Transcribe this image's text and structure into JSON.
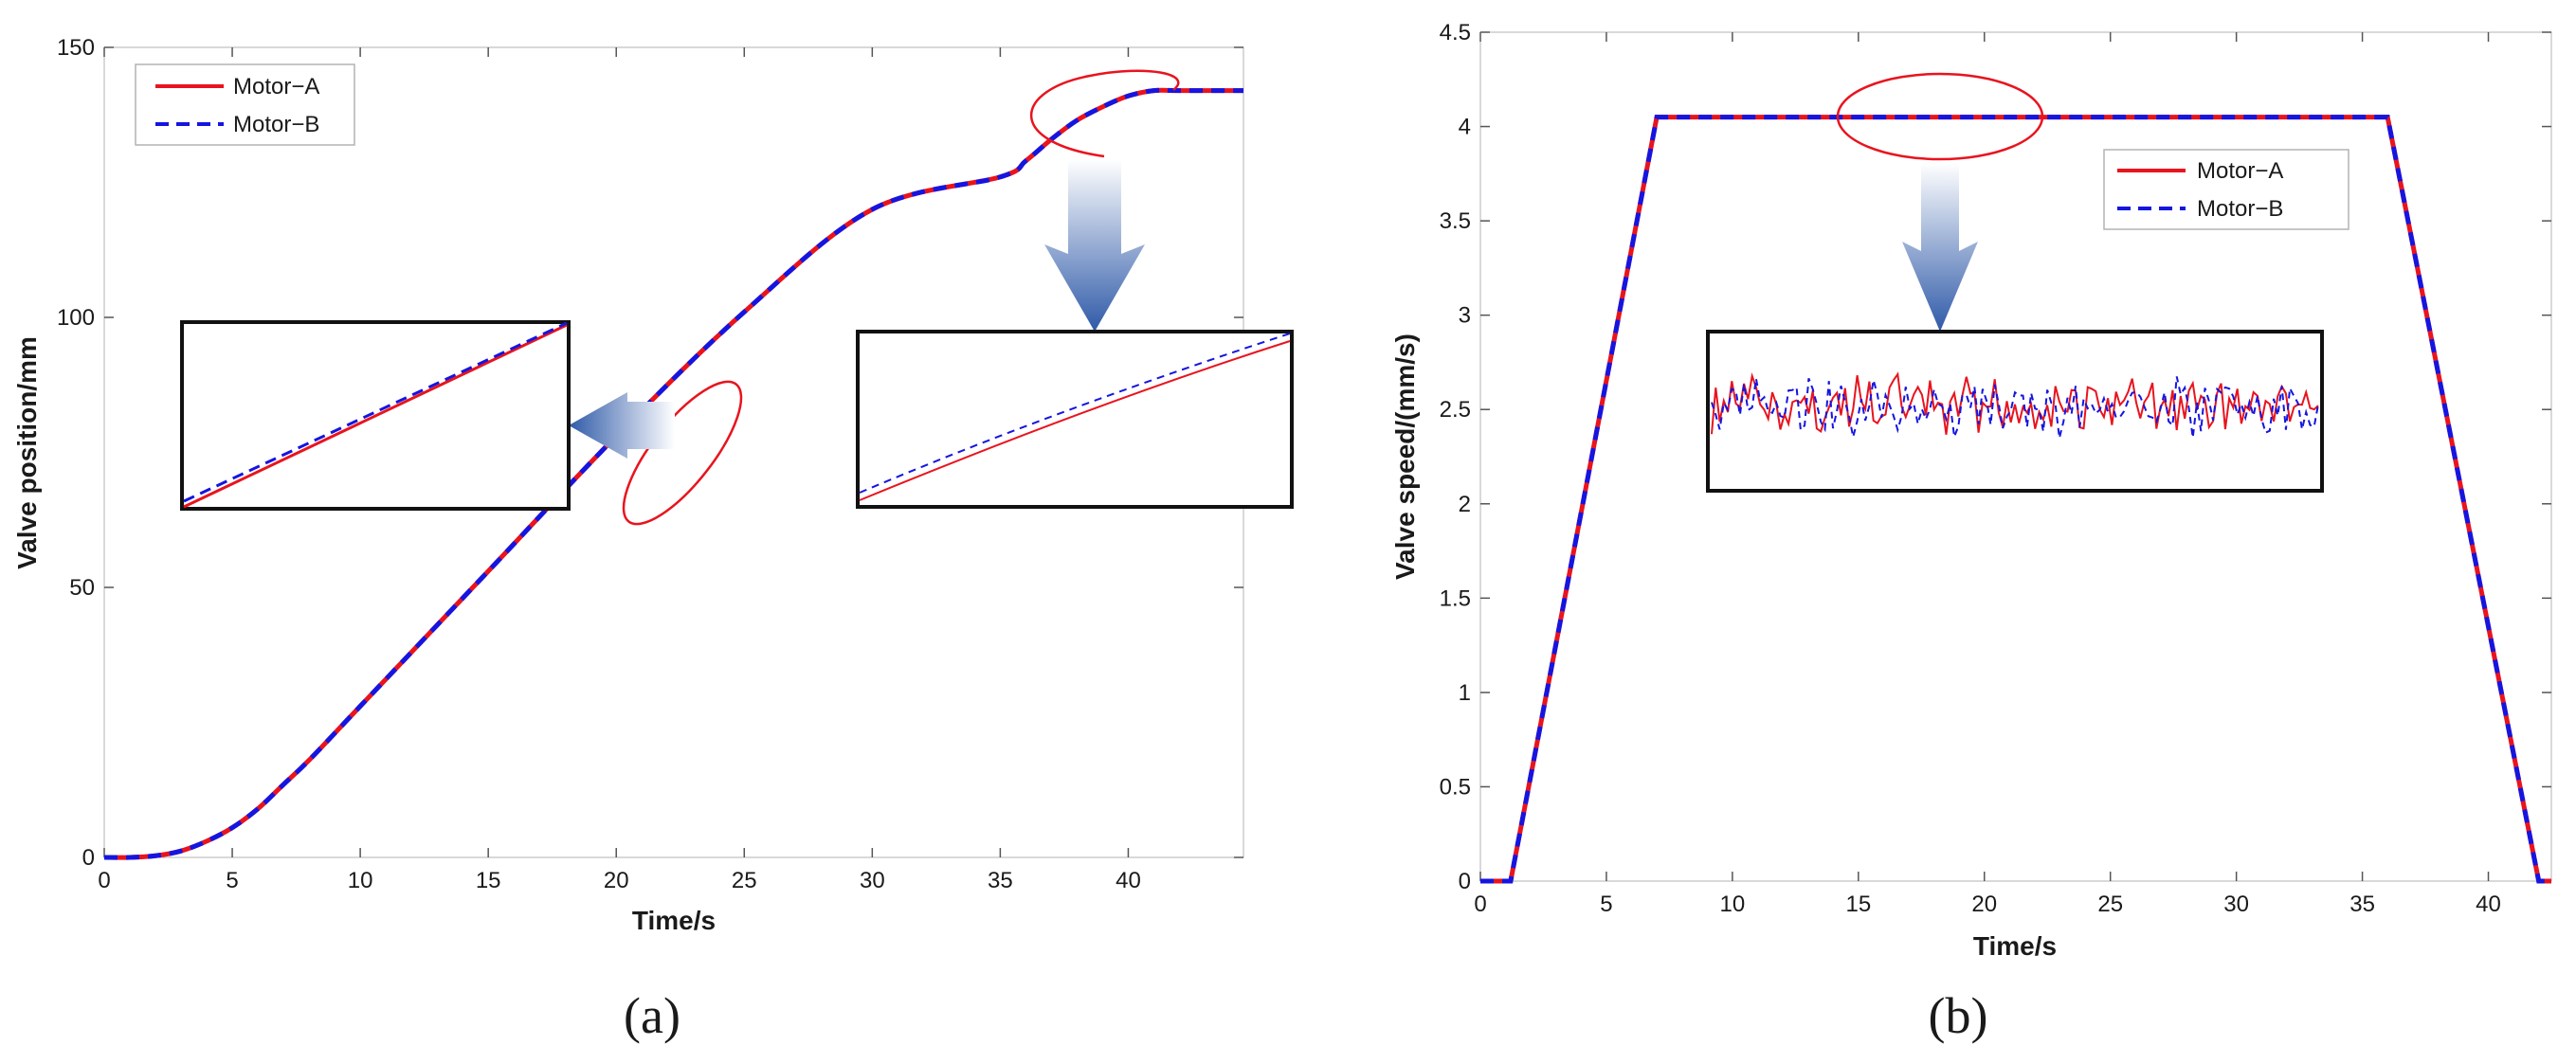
{
  "colors": {
    "motor_a": "#e8141e",
    "motor_b": "#1515e0",
    "highlight": "#e8141e",
    "arrow": "#3a62b0"
  },
  "chart_data": [
    {
      "panel": "(a)",
      "type": "line",
      "xlabel": "Time/s",
      "ylabel": "Valve position/mm",
      "xlim": [
        0,
        44.5
      ],
      "ylim": [
        0,
        150
      ],
      "xticks": [
        "0",
        "5",
        "10",
        "15",
        "20",
        "25",
        "30",
        "35",
        "40"
      ],
      "yticks": [
        "0",
        "50",
        "100",
        "150"
      ],
      "legend": {
        "placement": "top-left",
        "entries": [
          "Motor−A",
          "Motor−B"
        ]
      },
      "series": [
        {
          "name": "Motor−A",
          "style": "solid",
          "x": [
            0,
            1,
            2,
            3,
            4,
            5,
            6,
            7,
            8,
            10,
            15,
            20,
            25,
            30,
            35,
            36,
            37,
            38,
            39,
            40,
            41,
            42,
            44.5
          ],
          "y": [
            0,
            0,
            0.3,
            1.2,
            3,
            5.5,
            9,
            13.5,
            18,
            28,
            53,
            78,
            101,
            120,
            126,
            129,
            133,
            136.5,
            139,
            141,
            142,
            142,
            142
          ]
        },
        {
          "name": "Motor−B",
          "style": "dashed",
          "x": [
            0,
            1,
            2,
            3,
            4,
            5,
            6,
            7,
            8,
            10,
            15,
            20,
            25,
            30,
            35,
            36,
            37,
            38,
            39,
            40,
            41,
            42,
            44.5
          ],
          "y": [
            0,
            0,
            0.3,
            1.2,
            3,
            5.5,
            9,
            13.5,
            18,
            28,
            53,
            78,
            101,
            120,
            126,
            129,
            133,
            136.5,
            139,
            141,
            142,
            142,
            142
          ]
        }
      ]
    },
    {
      "panel": "(b)",
      "type": "line",
      "xlabel": "Time/s",
      "ylabel": "Valve speed/(mm/s)",
      "xlim": [
        0,
        42.5
      ],
      "ylim": [
        0,
        4.5
      ],
      "xticks": [
        "0",
        "5",
        "10",
        "15",
        "20",
        "25",
        "30",
        "35",
        "40"
      ],
      "yticks": [
        "0",
        "0.5",
        "1",
        "1.5",
        "2",
        "2.5",
        "3",
        "3.5",
        "4",
        "4.5"
      ],
      "legend": {
        "placement": "top-right",
        "entries": [
          "Motor−A",
          "Motor−B"
        ]
      },
      "series": [
        {
          "name": "Motor−A",
          "style": "solid",
          "x": [
            0,
            1.2,
            7,
            36,
            42,
            42.5
          ],
          "y": [
            0,
            0,
            4.05,
            4.05,
            0,
            0
          ]
        },
        {
          "name": "Motor−B",
          "style": "dashed",
          "x": [
            0,
            1.2,
            7,
            36,
            42,
            42.5
          ],
          "y": [
            0,
            0,
            4.05,
            4.05,
            0,
            0
          ]
        }
      ]
    }
  ]
}
